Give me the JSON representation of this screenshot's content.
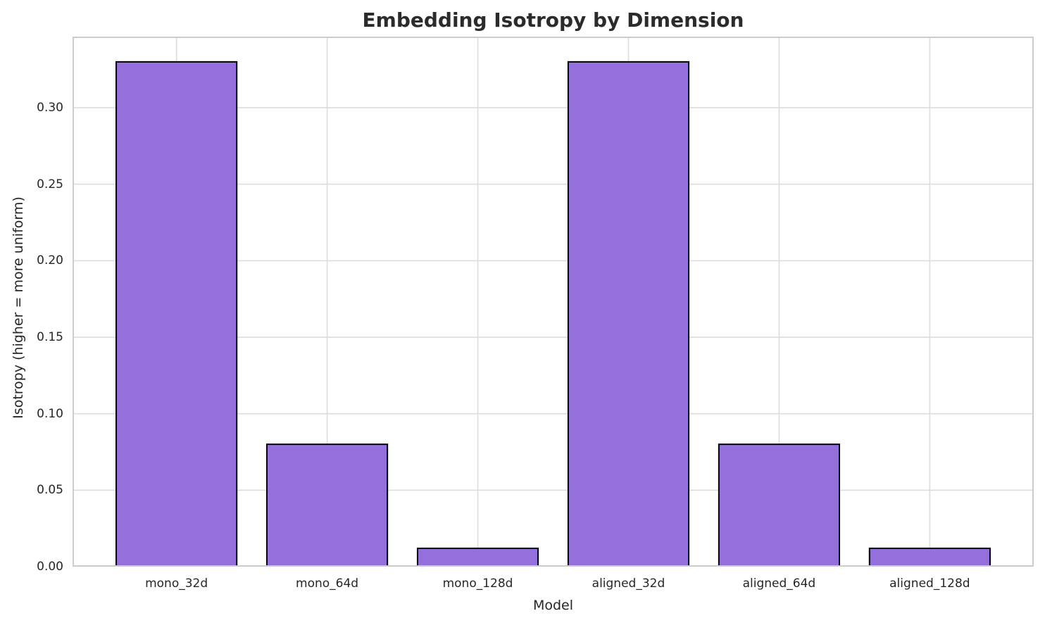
{
  "chart_data": {
    "type": "bar",
    "title": "Embedding Isotropy by Dimension",
    "xlabel": "Model",
    "ylabel": "Isotropy (higher = more uniform)",
    "categories": [
      "mono_32d",
      "mono_64d",
      "mono_128d",
      "aligned_32d",
      "aligned_64d",
      "aligned_128d"
    ],
    "values": [
      0.33,
      0.08,
      0.012,
      0.33,
      0.08,
      0.012
    ],
    "yticks": [
      0.0,
      0.05,
      0.1,
      0.15,
      0.2,
      0.25,
      0.3
    ],
    "ytick_labels": [
      "0.00",
      "0.05",
      "0.10",
      "0.15",
      "0.20",
      "0.25",
      "0.30"
    ],
    "ylim": [
      0,
      0.3465
    ],
    "xlim": [
      -0.69,
      5.69
    ],
    "bar_width": 0.8,
    "grid": true,
    "legend": false,
    "colors": {
      "bar_fill": "#9370DB",
      "bar_edge": "#000000",
      "grid": "#dcdcdc",
      "spine": "#cccccc",
      "text": "#262626",
      "title_text": "#2b2b2b",
      "background": "#ffffff"
    }
  }
}
